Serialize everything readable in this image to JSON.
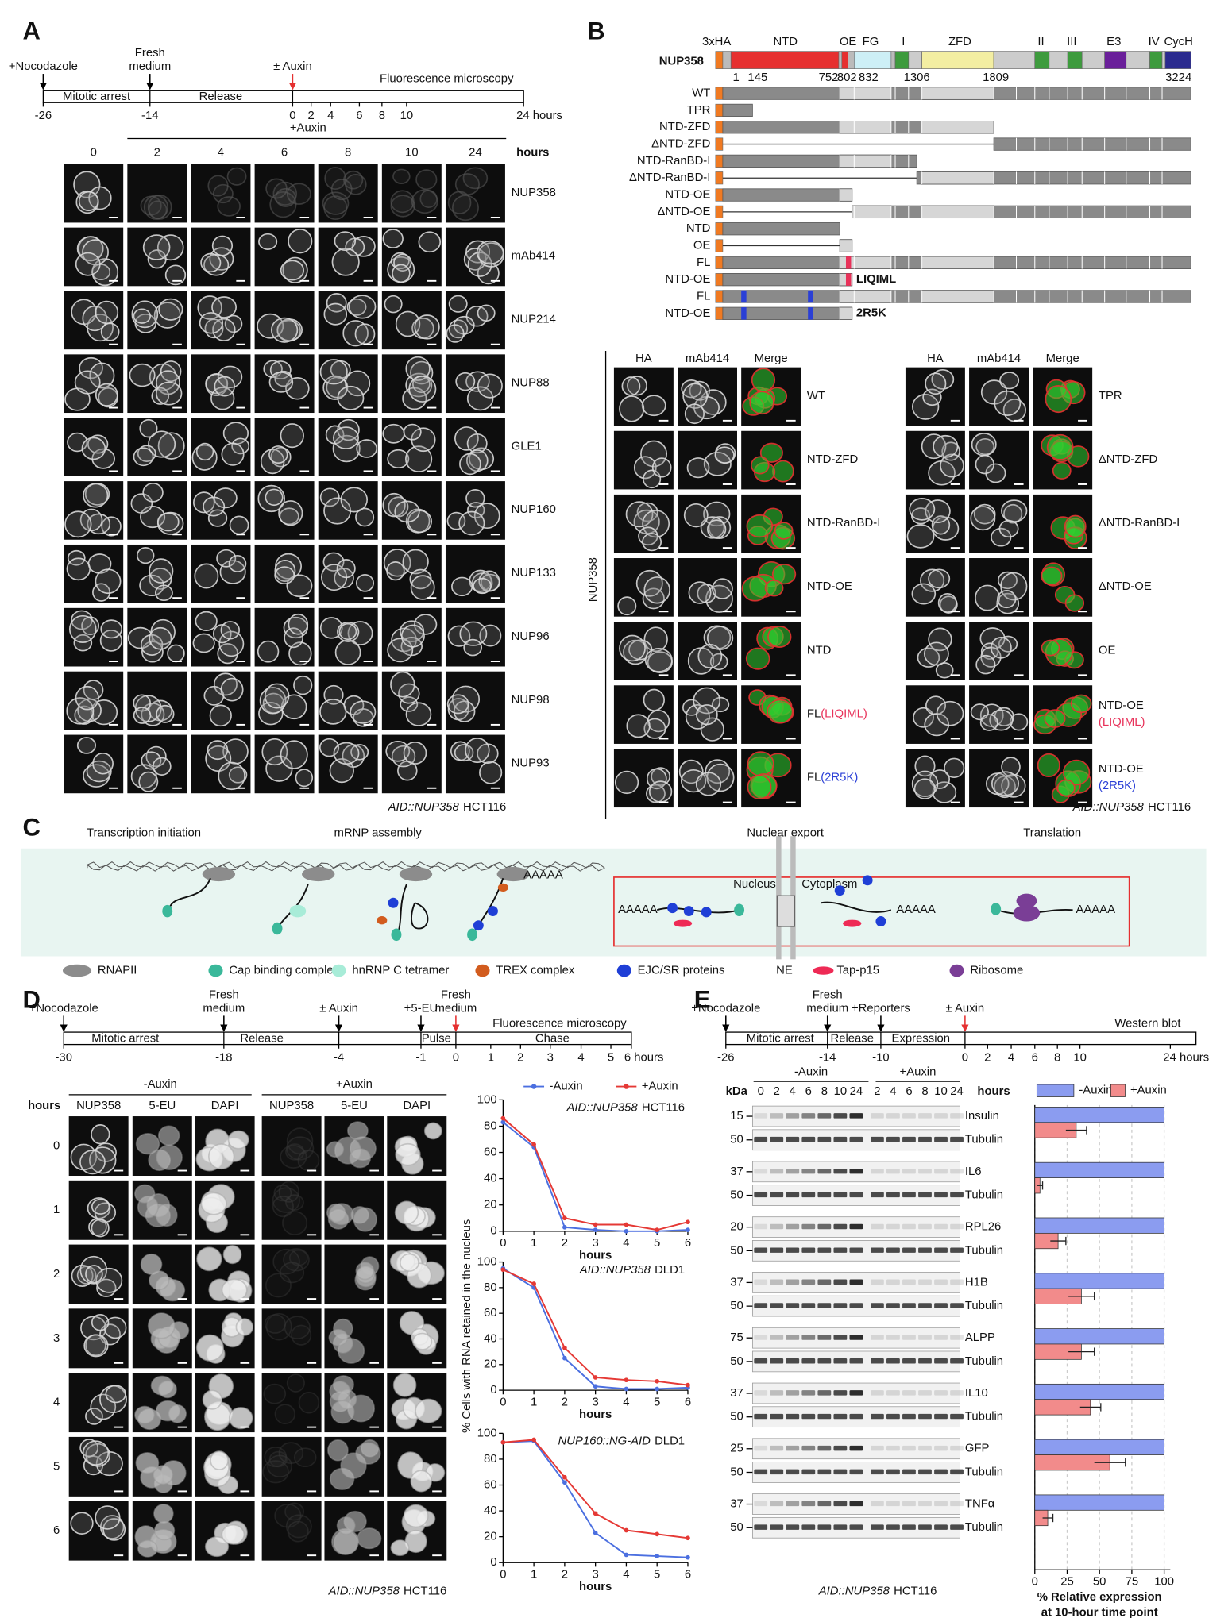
{
  "panel_a": {
    "letter": "A",
    "events": [
      [
        "+Nocodazole"
      ],
      [
        "Fresh",
        "medium"
      ],
      [
        "± Auxin"
      ]
    ],
    "phases": [
      "Mitotic arrest",
      "Release"
    ],
    "readout": "Fluorescence microscopy",
    "ticks": [
      "-26",
      "-14",
      "0",
      "2",
      "4",
      "6",
      "8",
      "10",
      "24 hours"
    ],
    "treatment": "+Auxin",
    "columns": [
      "0",
      "2",
      "4",
      "6",
      "8",
      "10",
      "24"
    ],
    "columns_unit": "hours",
    "rows": [
      "NUP358",
      "mAb414",
      "NUP214",
      "NUP88",
      "GLE1",
      "NUP160",
      "NUP133",
      "NUP96",
      "NUP98",
      "NUP93"
    ],
    "caption": [
      "AID::NUP358",
      "HCT116"
    ]
  },
  "panel_b": {
    "letter": "B",
    "protein": "NUP358",
    "domains": [
      "3xHA",
      "NTD",
      "OE",
      "FG",
      "I",
      "ZFD",
      "II",
      "III",
      "E3",
      "IV",
      "CycH"
    ],
    "residues": [
      "1",
      "145",
      "752",
      "802",
      "832",
      "1306",
      "1809",
      "3224"
    ],
    "constructs": [
      {
        "name": [
          "WT"
        ]
      },
      {
        "name": [
          "TPR"
        ]
      },
      {
        "name": [
          "NTD-ZFD"
        ]
      },
      {
        "name": [
          "ΔNTD-ZFD"
        ]
      },
      {
        "name": [
          "NTD-RanBD-I"
        ]
      },
      {
        "name": [
          "ΔNTD-RanBD-I"
        ]
      },
      {
        "name": [
          "NTD-OE"
        ]
      },
      {
        "name": [
          "ΔNTD-OE"
        ]
      },
      {
        "name": [
          "NTD"
        ]
      },
      {
        "name": [
          "OE"
        ]
      },
      {
        "name": [
          "FL",
          "(LIQIML)"
        ],
        "color": "#e8325a"
      },
      {
        "name": [
          "NTD-OE",
          "(LIQIML)"
        ],
        "color": "#e8325a",
        "tag": "LIQIML"
      },
      {
        "name": [
          "FL",
          "(2R5K)"
        ],
        "color": "#2a3fd6"
      },
      {
        "name": [
          "NTD-OE",
          "(2R5K)"
        ],
        "color": "#2a3fd6",
        "tag": "2R5K"
      }
    ],
    "channels": [
      "HA",
      "mAb414",
      "Merge"
    ],
    "channel_colors": [
      "#35b935",
      "#e53030",
      "#111111"
    ],
    "side_label": "NUP358",
    "left_rows": [
      [
        [
          "WT"
        ]
      ],
      [
        [
          "NTD-ZFD"
        ]
      ],
      [
        [
          "NTD-RanBD-I"
        ]
      ],
      [
        [
          "NTD-OE"
        ]
      ],
      [
        [
          "NTD"
        ]
      ],
      [
        [
          "FL",
          {
            "text": "(LIQIML)",
            "color": "#e8325a"
          }
        ]
      ],
      [
        [
          "FL",
          {
            "text": "(2R5K)",
            "color": "#2a3fd6"
          }
        ]
      ]
    ],
    "right_rows": [
      [
        [
          "TPR"
        ]
      ],
      [
        [
          "ΔNTD-ZFD"
        ]
      ],
      [
        [
          "ΔNTD-RanBD-I"
        ]
      ],
      [
        [
          "ΔNTD-OE"
        ]
      ],
      [
        [
          "OE"
        ]
      ],
      [
        [
          "NTD-OE"
        ],
        [
          {
            "text": "(LIQIML)",
            "color": "#e8325a"
          }
        ]
      ],
      [
        [
          "NTD-OE"
        ],
        [
          {
            "text": "(2R5K)",
            "color": "#2a3fd6"
          }
        ]
      ]
    ],
    "caption": [
      "AID::NUP358",
      "HCT116"
    ]
  },
  "panel_c": {
    "letter": "C",
    "stages": [
      "Transcription initiation",
      "mRNP assembly",
      "Nuclear export",
      "Translation"
    ],
    "compartments": [
      "Nucleus",
      "Cytoplasm"
    ],
    "poly_a": "AAAAA",
    "membrane": "NE",
    "legend": [
      "RNAPII",
      "Cap binding complex",
      "hnRNP C tetramer",
      "TREX complex",
      "EJC/SR proteins",
      "Tap-p15",
      "Ribosome"
    ]
  },
  "panel_d": {
    "letter": "D",
    "events": [
      [
        "+Nocodazole"
      ],
      [
        "Fresh",
        "medium"
      ],
      [
        "± Auxin"
      ],
      [
        "+5-EU"
      ],
      [
        "Fresh",
        "medium"
      ]
    ],
    "phases": [
      "Mitotic arrest",
      "Release",
      "Pulse",
      "Chase"
    ],
    "readout": "Fluorescence microscopy",
    "ticks": [
      "-30",
      "-18",
      "-4",
      "-1",
      "0",
      "1",
      "2",
      "3",
      "4",
      "5",
      "6 hours"
    ],
    "conditions": [
      "-Auxin",
      "+Auxin"
    ],
    "channels": [
      "NUP358",
      "5-EU",
      "DAPI"
    ],
    "rows_unit": "hours",
    "rows": [
      "0",
      "1",
      "2",
      "3",
      "4",
      "5",
      "6"
    ],
    "caption": [
      "AID::NUP358",
      "HCT116"
    ]
  },
  "panel_e": {
    "letter": "E",
    "events": [
      [
        "+Nocodazole"
      ],
      [
        "Fresh",
        "medium"
      ],
      [
        "+Reporters"
      ],
      [
        "± Auxin"
      ]
    ],
    "phases": [
      "Mitotic arrest",
      "Release",
      "Expression"
    ],
    "readout": "Western blot",
    "ticks": [
      "-26",
      "-14",
      "-10",
      "0",
      "2",
      "4",
      "6",
      "8",
      "10",
      "24 hours"
    ],
    "kda_unit": "kDa",
    "conditions": [
      "-Auxin",
      "+Auxin"
    ],
    "lanes": [
      [
        "0",
        "2",
        "4",
        "6",
        "8",
        "10",
        "24"
      ],
      [
        "2",
        "4",
        "6",
        "8",
        "10",
        "24"
      ]
    ],
    "lanes_unit": "hours",
    "loading": "Tubulin",
    "loading_kda": "50",
    "blots": [
      {
        "protein": "Insulin",
        "kda": "15"
      },
      {
        "protein": "IL6",
        "kda": "37"
      },
      {
        "protein": "RPL26",
        "kda": "20"
      },
      {
        "protein": "H1B",
        "kda": "37"
      },
      {
        "protein": "ALPP",
        "kda": "75"
      },
      {
        "protein": "IL10",
        "kda": "37"
      },
      {
        "protein": "GFP",
        "kda": "25"
      },
      {
        "protein": "TNFα",
        "kda": "37"
      }
    ],
    "caption": [
      "AID::NUP358",
      "HCT116"
    ]
  },
  "chart_data": [
    {
      "type": "line",
      "title": [
        "AID::NUP358",
        "HCT116"
      ],
      "x": [
        0,
        1,
        2,
        3,
        4,
        5,
        6
      ],
      "xlim": [
        0,
        6
      ],
      "xticks": [
        0,
        1,
        2,
        3,
        4,
        5,
        6
      ],
      "xlabel": "hours",
      "ylim": [
        0,
        100
      ],
      "yticks": [
        0,
        20,
        40,
        60,
        80,
        100
      ],
      "legend": "top",
      "series": [
        {
          "name": "-Auxin",
          "color": "#4b6fe0",
          "values": [
            83,
            64,
            3,
            1,
            0,
            0,
            1
          ]
        },
        {
          "name": "+Auxin",
          "color": "#e53935",
          "values": [
            86,
            66,
            10,
            5,
            5,
            1,
            7
          ]
        }
      ]
    },
    {
      "type": "line",
      "title": [
        "AID::NUP358",
        "DLD1"
      ],
      "x": [
        0,
        1,
        2,
        3,
        4,
        5,
        6
      ],
      "xlim": [
        0,
        6
      ],
      "xticks": [
        0,
        1,
        2,
        3,
        4,
        5,
        6
      ],
      "xlabel": "hours",
      "ylim": [
        0,
        100
      ],
      "yticks": [
        0,
        20,
        40,
        60,
        80,
        100
      ],
      "ylabel": "% Cells with RNA retained in the nucleus",
      "series": [
        {
          "color": "#4b6fe0",
          "values": [
            95,
            80,
            25,
            3,
            1,
            1,
            2
          ]
        },
        {
          "color": "#e53935",
          "values": [
            94,
            83,
            33,
            10,
            8,
            7,
            4
          ]
        }
      ]
    },
    {
      "type": "line",
      "title": [
        "NUP160::NG-AID",
        "DLD1"
      ],
      "x": [
        0,
        1,
        2,
        3,
        4,
        5,
        6
      ],
      "xlim": [
        0,
        6
      ],
      "xticks": [
        0,
        1,
        2,
        3,
        4,
        5,
        6
      ],
      "xlabel": "hours",
      "ylim": [
        0,
        100
      ],
      "yticks": [
        0,
        20,
        40,
        60,
        80,
        100
      ],
      "series": [
        {
          "color": "#4b6fe0",
          "values": [
            93,
            94,
            62,
            23,
            6,
            5,
            4
          ]
        },
        {
          "color": "#e53935",
          "values": [
            93,
            95,
            66,
            38,
            25,
            22,
            19
          ]
        }
      ]
    },
    {
      "type": "barh",
      "categories": [
        null,
        null,
        null,
        null,
        null,
        null,
        null,
        null
      ],
      "xlim": [
        0,
        100
      ],
      "xticks": [
        0,
        25,
        50,
        75,
        100
      ],
      "xlabel": [
        "% Relative expression",
        "at 10-hour time point"
      ],
      "grid": true,
      "legend": "top",
      "series": [
        {
          "name": "-Auxin",
          "color": "#8b9cf0",
          "values": [
            100,
            100,
            100,
            100,
            100,
            100,
            100,
            100
          ]
        },
        {
          "name": "+Auxin",
          "color": "#f28b8b",
          "values": [
            32,
            4,
            18,
            36,
            36,
            43,
            58,
            10
          ],
          "errors": [
            8,
            2,
            6,
            10,
            10,
            8,
            12,
            4
          ]
        }
      ]
    }
  ]
}
